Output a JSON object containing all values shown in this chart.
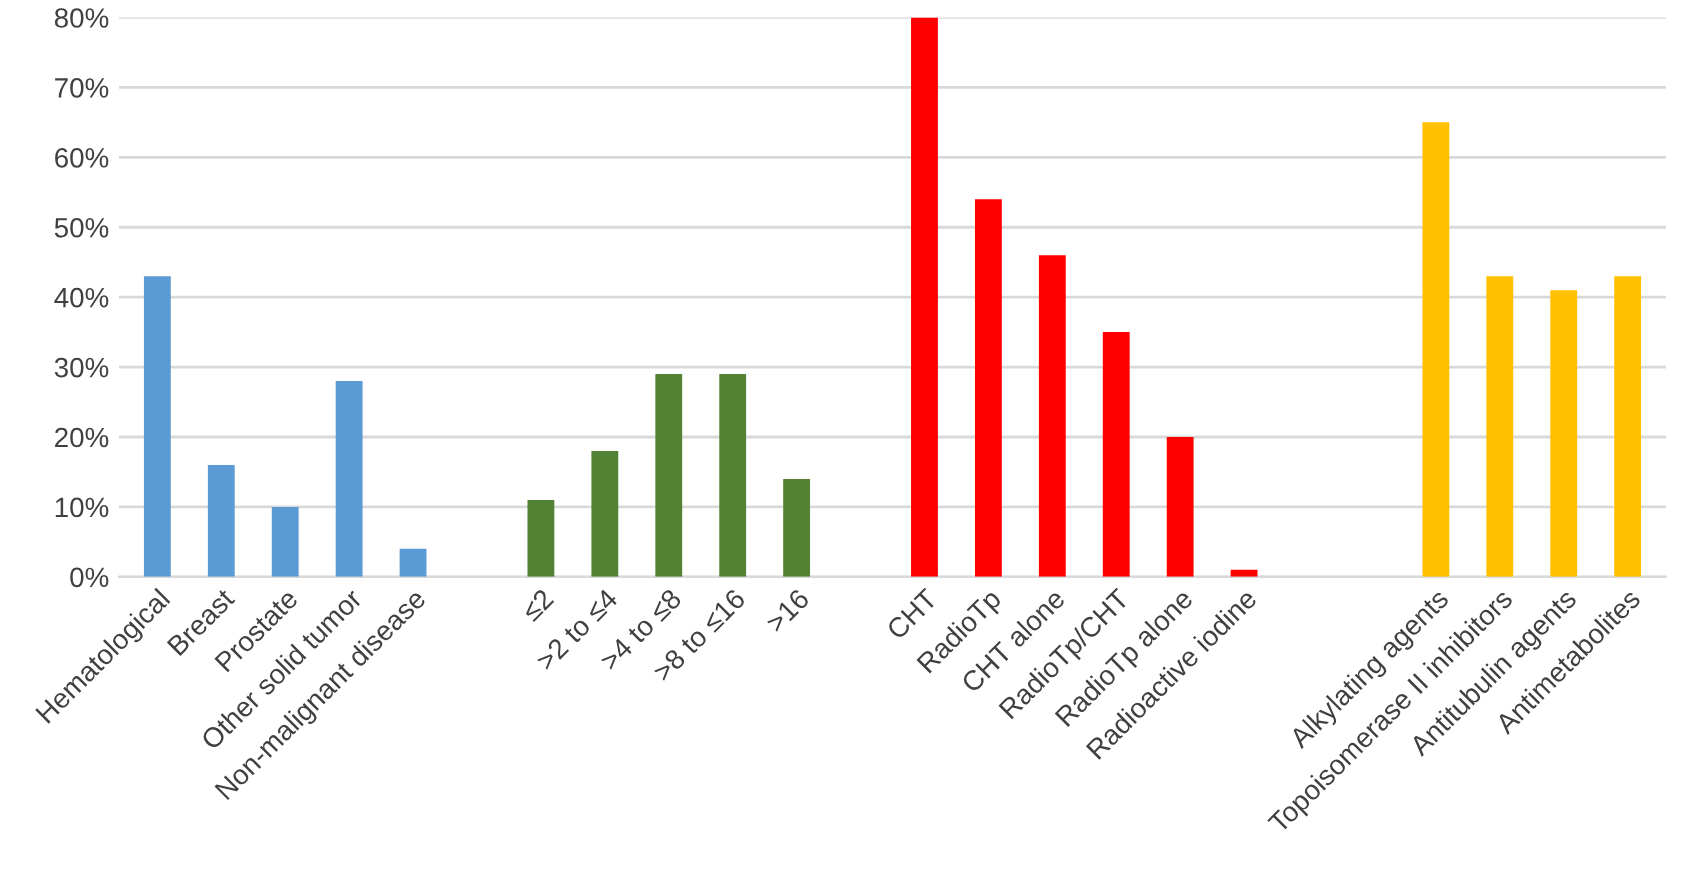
{
  "chart_data": {
    "type": "bar",
    "categories": [
      "Hematological",
      "Breast",
      "Prostate",
      "Other solid tumor",
      "Non-malignant disease",
      null,
      "≤2",
      ">2 to ≤4",
      ">4 to ≤8",
      ">8 to ≤16",
      ">16",
      null,
      "CHT",
      "RadioTp",
      "CHT alone",
      "RadioTp/CHT",
      "RadioTp alone",
      "Radioactive iodine",
      null,
      null,
      "Alkylating agents",
      "Topoisomerase II inhibitors",
      "Antitubulin agents",
      "Antimetabolites"
    ],
    "values": [
      43,
      16,
      10,
      28,
      4,
      null,
      11,
      18,
      29,
      29,
      14,
      null,
      80,
      54,
      46,
      35,
      20,
      1,
      null,
      null,
      65,
      43,
      41,
      43
    ],
    "colors": [
      "#5b9bd5",
      "#5b9bd5",
      "#5b9bd5",
      "#5b9bd5",
      "#5b9bd5",
      null,
      "#548235",
      "#548235",
      "#548235",
      "#548235",
      "#548235",
      null,
      "#ff0000",
      "#ff0000",
      "#ff0000",
      "#ff0000",
      "#ff0000",
      "#ff0000",
      null,
      null,
      "#ffc000",
      "#ffc000",
      "#ffc000",
      "#ffc000"
    ],
    "ylim": [
      0,
      80
    ],
    "yticks": [
      {
        "value": 0,
        "label": "0%"
      },
      {
        "value": 10,
        "label": "10%"
      },
      {
        "value": 20,
        "label": "20%"
      },
      {
        "value": 30,
        "label": "30%"
      },
      {
        "value": 40,
        "label": "40%"
      },
      {
        "value": 50,
        "label": "50%"
      },
      {
        "value": 60,
        "label": "60%"
      },
      {
        "value": 70,
        "label": "70%"
      },
      {
        "value": 80,
        "label": "80%"
      }
    ],
    "grid": "y"
  }
}
